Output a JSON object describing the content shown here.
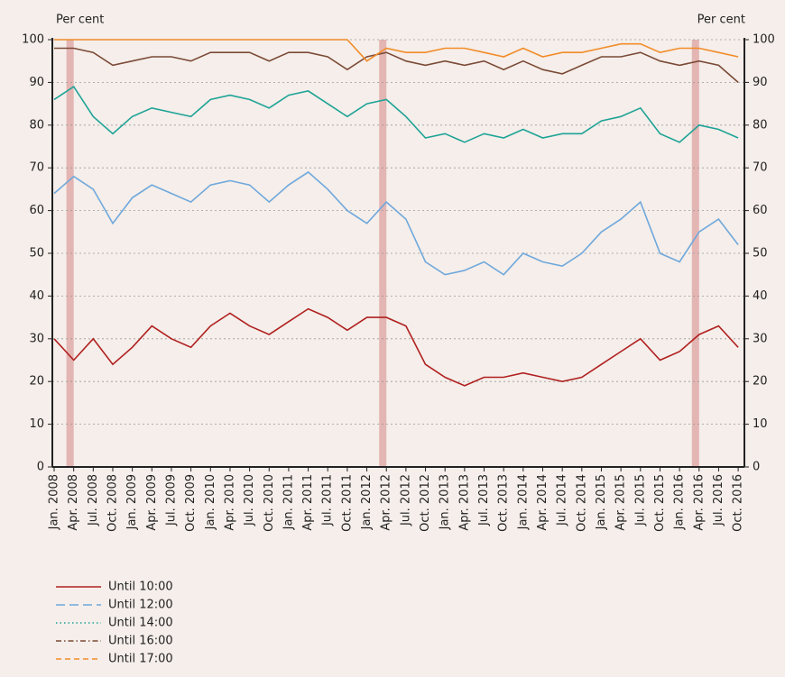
{
  "chart_data": {
    "type": "line",
    "y_label": "Per cent",
    "y2_label": "Per cent",
    "categories": [
      "Jan. 2008",
      "Apr. 2008",
      "Jul. 2008",
      "Oct. 2008",
      "Jan. 2009",
      "Apr. 2009",
      "Jul. 2009",
      "Oct. 2009",
      "Jan. 2010",
      "Apr. 2010",
      "Jul. 2010",
      "Oct. 2010",
      "Jan. 2011",
      "Apr. 2011",
      "Jul. 2011",
      "Oct. 2011",
      "Jan. 2012",
      "Apr. 2012",
      "Jul. 2012",
      "Oct. 2012",
      "Jan. 2013",
      "Apr. 2013",
      "Jul. 2013",
      "Oct. 2013",
      "Jan. 2014",
      "Apr. 2014",
      "Jul. 2014",
      "Oct. 2014",
      "Jan. 2015",
      "Apr. 2015",
      "Jul. 2015",
      "Oct. 2015",
      "Jan. 2016",
      "Apr. 2016",
      "Jul. 2016",
      "Oct. 2016"
    ],
    "highlight_categories": [
      1,
      17,
      33
    ],
    "highlight_color": "#e3b5b3",
    "series": [
      {
        "name": "Until 10:00",
        "color": "#b0201f",
        "style": "solid",
        "values": [
          30,
          25,
          30,
          24,
          28,
          33,
          30,
          28,
          33,
          36,
          33,
          31,
          34,
          37,
          35,
          32,
          35,
          35,
          33,
          24,
          21,
          19,
          21,
          21,
          22,
          21,
          20,
          21,
          24,
          27,
          30,
          25,
          27,
          31,
          33,
          28
        ]
      },
      {
        "name": "Until 12:00",
        "color": "#6fa8dc",
        "style": "longdash",
        "values": [
          64,
          68,
          65,
          57,
          63,
          66,
          64,
          62,
          66,
          67,
          66,
          62,
          66,
          69,
          65,
          60,
          57,
          62,
          58,
          48,
          45,
          46,
          48,
          45,
          50,
          48,
          47,
          50,
          55,
          58,
          62,
          50,
          48,
          55,
          58,
          52
        ]
      },
      {
        "name": "Until 14:00",
        "color": "#1ea396",
        "style": "dotted",
        "values": [
          86,
          89,
          82,
          78,
          82,
          84,
          83,
          82,
          86,
          87,
          86,
          84,
          87,
          88,
          85,
          82,
          85,
          86,
          82,
          77,
          78,
          76,
          78,
          77,
          79,
          77,
          78,
          78,
          81,
          82,
          84,
          78,
          76,
          80,
          79,
          77
        ]
      },
      {
        "name": "Until 16:00",
        "color": "#7b4a36",
        "style": "dashdot",
        "values": [
          98,
          98,
          97,
          94,
          95,
          96,
          96,
          95,
          97,
          97,
          97,
          95,
          97,
          97,
          96,
          93,
          96,
          97,
          95,
          94,
          95,
          94,
          95,
          93,
          95,
          93,
          92,
          94,
          96,
          96,
          97,
          95,
          94,
          95,
          94,
          90
        ]
      },
      {
        "name": "Until 17:00",
        "color": "#f28c28",
        "style": "dashed",
        "values": [
          100,
          100,
          100,
          100,
          100,
          100,
          100,
          100,
          100,
          100,
          100,
          100,
          100,
          100,
          100,
          100,
          95,
          98,
          97,
          97,
          98,
          98,
          97,
          96,
          98,
          96,
          97,
          97,
          98,
          99,
          99,
          97,
          98,
          98,
          97,
          96
        ]
      }
    ],
    "ylim": [
      0,
      100
    ],
    "yticks": [
      0,
      10,
      20,
      30,
      40,
      50,
      60,
      70,
      80,
      90,
      100
    ],
    "y2lim": [
      0,
      100
    ],
    "y2ticks": [
      0,
      10,
      20,
      30,
      40,
      50,
      60,
      70,
      80,
      90,
      100
    ],
    "grid": true
  }
}
